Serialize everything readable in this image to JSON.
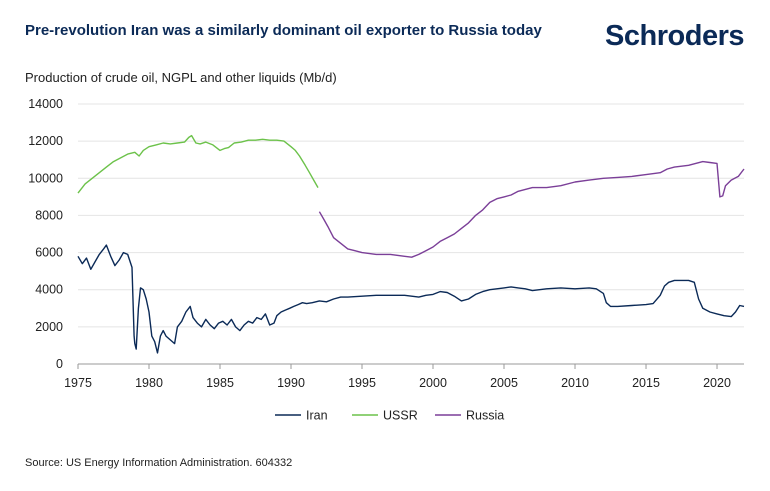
{
  "header": {
    "title": "Pre-revolution Iran was a similarly dominant oil exporter to Russia today",
    "logo": "Schroders"
  },
  "footer": {
    "source": "Source: US Energy Information Administration. 604332"
  },
  "colors": {
    "iran": "#0b2a57",
    "ussr": "#6cc24a",
    "russia": "#7b3f98",
    "grid": "#e4e4e4",
    "axis": "#999999"
  },
  "chart_data": {
    "type": "line",
    "title": "Pre-revolution Iran was a similarly dominant oil exporter to Russia today",
    "ylabel": "Production of crude oil, NGPL and other liquids (Mb/d)",
    "xlabel": "",
    "xlim": [
      1975,
      2021.9
    ],
    "ylim": [
      0,
      14000
    ],
    "x_ticks": [
      1975,
      1980,
      1985,
      1990,
      1995,
      2000,
      2005,
      2010,
      2015,
      2020
    ],
    "y_ticks": [
      0,
      2000,
      4000,
      6000,
      8000,
      10000,
      12000,
      14000
    ],
    "y_tick_labels": [
      "0",
      "2000",
      "4000",
      "6000",
      "8000",
      "10000",
      "12000",
      "14000"
    ],
    "grid": "horizontal",
    "legend": "bottom",
    "series": [
      {
        "name": "Iran",
        "x": [
          1975.0,
          1975.3,
          1975.6,
          1975.9,
          1976.2,
          1976.5,
          1976.8,
          1977.0,
          1977.3,
          1977.6,
          1977.9,
          1978.2,
          1978.5,
          1978.8,
          1978.95,
          1979.0,
          1979.1,
          1979.25,
          1979.4,
          1979.6,
          1979.8,
          1980.0,
          1980.2,
          1980.4,
          1980.6,
          1980.8,
          1981.0,
          1981.2,
          1981.5,
          1981.8,
          1982.0,
          1982.3,
          1982.6,
          1982.9,
          1983.1,
          1983.4,
          1983.7,
          1984.0,
          1984.3,
          1984.6,
          1984.9,
          1985.2,
          1985.5,
          1985.8,
          1986.1,
          1986.4,
          1986.7,
          1987.0,
          1987.3,
          1987.6,
          1987.9,
          1988.2,
          1988.5,
          1988.8,
          1989.0,
          1989.3,
          1989.6,
          1989.9,
          1990.2,
          1990.5,
          1990.8,
          1991.1,
          1991.5,
          1992.0,
          1992.5,
          1993.0,
          1993.5,
          1994.0,
          1995.0,
          1996.0,
          1997.0,
          1998.0,
          1999.0,
          1999.5,
          2000.0,
          2000.5,
          2001.0,
          2001.5,
          2002.0,
          2002.5,
          2003.0,
          2003.5,
          2004.0,
          2005.0,
          2005.5,
          2006.0,
          2006.5,
          2007.0,
          2008.0,
          2009.0,
          2010.0,
          2011.0,
          2011.5,
          2012.0,
          2012.2,
          2012.5,
          2013.0,
          2014.0,
          2015.0,
          2015.5,
          2016.0,
          2016.3,
          2016.6,
          2017.0,
          2018.0,
          2018.4,
          2018.7,
          2019.0,
          2019.5,
          2020.0,
          2020.5,
          2021.0,
          2021.3,
          2021.6,
          2021.9
        ],
        "values": [
          5800,
          5400,
          5700,
          5100,
          5500,
          5900,
          6200,
          6400,
          5800,
          5300,
          5600,
          6000,
          5900,
          5200,
          1500,
          1100,
          800,
          3000,
          4100,
          4000,
          3500,
          2800,
          1500,
          1200,
          600,
          1500,
          1800,
          1500,
          1300,
          1100,
          2000,
          2300,
          2800,
          3100,
          2500,
          2200,
          2000,
          2400,
          2100,
          1900,
          2200,
          2300,
          2100,
          2400,
          2000,
          1800,
          2100,
          2300,
          2200,
          2500,
          2400,
          2700,
          2100,
          2200,
          2600,
          2800,
          2900,
          3000,
          3100,
          3200,
          3300,
          3250,
          3300,
          3400,
          3350,
          3500,
          3600,
          3600,
          3650,
          3700,
          3700,
          3700,
          3600,
          3700,
          3750,
          3900,
          3850,
          3650,
          3400,
          3500,
          3750,
          3900,
          4000,
          4100,
          4150,
          4100,
          4050,
          3950,
          4050,
          4100,
          4050,
          4100,
          4050,
          3800,
          3300,
          3100,
          3100,
          3150,
          3200,
          3250,
          3700,
          4200,
          4400,
          4500,
          4500,
          4400,
          3500,
          3000,
          2800,
          2700,
          2600,
          2550,
          2800,
          3150,
          3100
        ]
      },
      {
        "name": "USSR",
        "x": [
          1975.0,
          1975.5,
          1976.0,
          1976.5,
          1977.0,
          1977.5,
          1978.0,
          1978.5,
          1979.0,
          1979.3,
          1979.6,
          1980.0,
          1980.5,
          1981.0,
          1981.5,
          1982.0,
          1982.5,
          1982.8,
          1983.0,
          1983.3,
          1983.6,
          1984.0,
          1984.5,
          1985.0,
          1985.3,
          1985.6,
          1986.0,
          1986.5,
          1987.0,
          1987.5,
          1988.0,
          1988.5,
          1989.0,
          1989.5,
          1990.0,
          1990.3,
          1990.6,
          1991.0,
          1991.3,
          1991.6,
          1991.9
        ],
        "values": [
          9200,
          9700,
          10000,
          10300,
          10600,
          10900,
          11100,
          11300,
          11400,
          11200,
          11500,
          11700,
          11800,
          11900,
          11850,
          11900,
          11950,
          12200,
          12300,
          11900,
          11850,
          11950,
          11800,
          11500,
          11600,
          11650,
          11900,
          11950,
          12050,
          12050,
          12100,
          12050,
          12050,
          12000,
          11700,
          11500,
          11200,
          10700,
          10300,
          9900,
          9500
        ]
      },
      {
        "name": "Russia",
        "x": [
          1992.0,
          1992.3,
          1992.6,
          1993.0,
          1993.5,
          1994.0,
          1994.5,
          1995.0,
          1996.0,
          1997.0,
          1998.0,
          1998.5,
          1999.0,
          1999.5,
          2000.0,
          2000.5,
          2001.0,
          2001.5,
          2002.0,
          2002.5,
          2003.0,
          2003.5,
          2004.0,
          2004.5,
          2005.0,
          2005.5,
          2006.0,
          2007.0,
          2008.0,
          2009.0,
          2010.0,
          2011.0,
          2012.0,
          2013.0,
          2014.0,
          2015.0,
          2016.0,
          2016.5,
          2017.0,
          2018.0,
          2019.0,
          2019.5,
          2020.0,
          2020.2,
          2020.4,
          2020.6,
          2021.0,
          2021.5,
          2021.9
        ],
        "values": [
          8200,
          7800,
          7400,
          6800,
          6500,
          6200,
          6100,
          6000,
          5900,
          5900,
          5800,
          5750,
          5900,
          6100,
          6300,
          6600,
          6800,
          7000,
          7300,
          7600,
          8000,
          8300,
          8700,
          8900,
          9000,
          9100,
          9300,
          9500,
          9500,
          9600,
          9800,
          9900,
          10000,
          10050,
          10100,
          10200,
          10300,
          10500,
          10600,
          10700,
          10900,
          10850,
          10800,
          9000,
          9050,
          9600,
          9900,
          10100,
          10500
        ]
      }
    ]
  }
}
